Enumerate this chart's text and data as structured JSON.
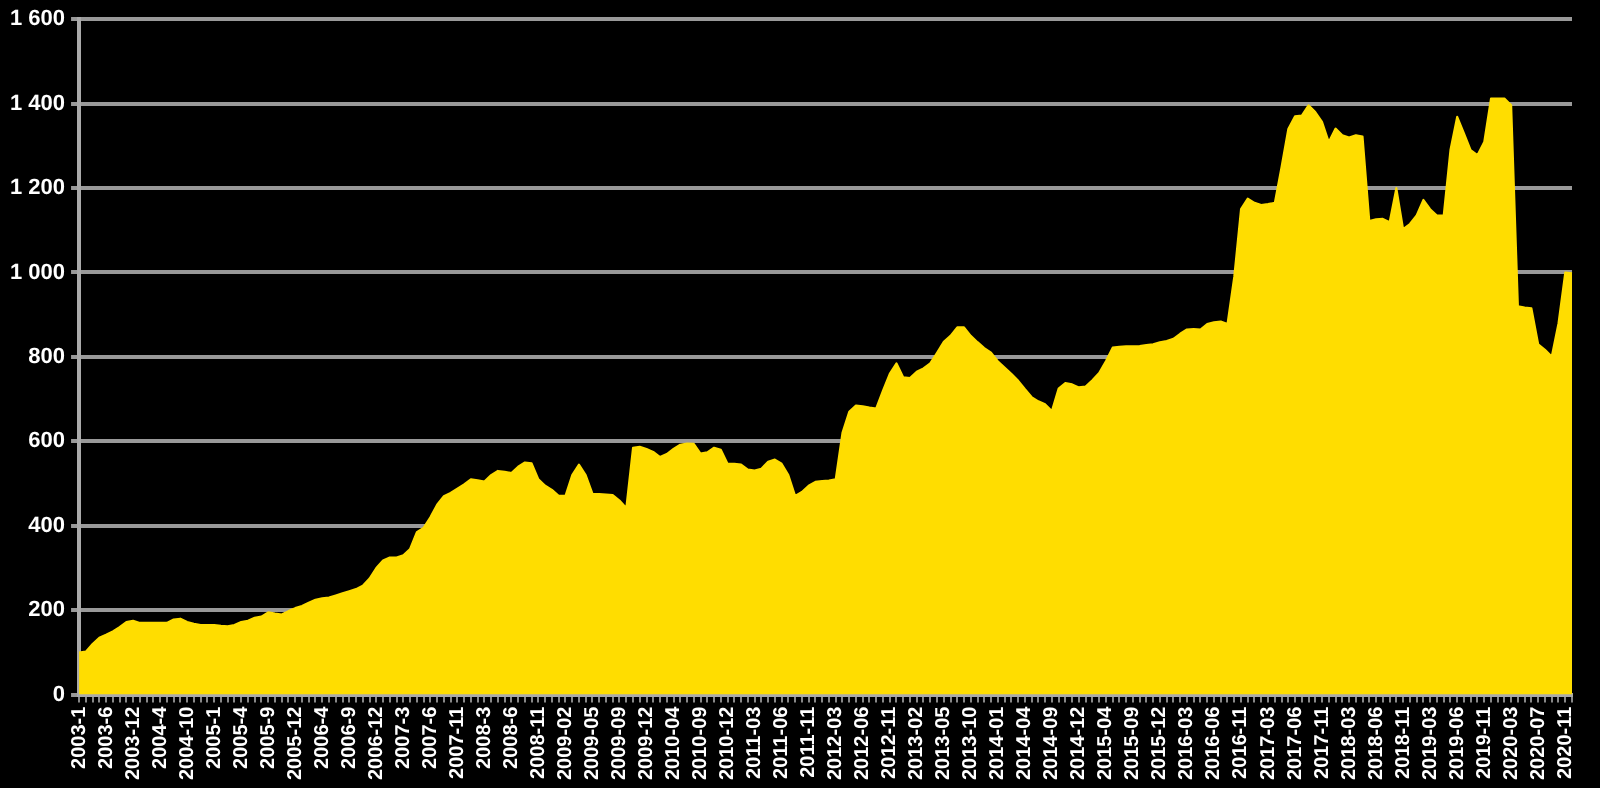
{
  "chart_data": {
    "type": "area",
    "color": "#ffdd00",
    "grid": "y",
    "ylim": [
      0,
      1600
    ],
    "yticks": [
      0,
      200,
      400,
      600,
      800,
      {
        "value": 1000,
        "label": "1 000"
      },
      {
        "value": 1200,
        "label": "1 200"
      },
      {
        "value": 1400,
        "label": "1 400"
      },
      {
        "value": 1600,
        "label": "1 600"
      }
    ],
    "categories": [
      "2003-1",
      null,
      null,
      null,
      "2003-6",
      null,
      null,
      null,
      "2003-12",
      null,
      null,
      null,
      "2004-4",
      null,
      null,
      null,
      "2004-10",
      null,
      null,
      null,
      "2005-1",
      null,
      null,
      null,
      "2005-4",
      null,
      null,
      null,
      "2005-9",
      null,
      null,
      null,
      "2005-12",
      null,
      null,
      null,
      "2006-4",
      null,
      null,
      null,
      "2006-9",
      null,
      null,
      null,
      "2006-12",
      null,
      null,
      null,
      "2007-3",
      null,
      null,
      null,
      "2007-6",
      null,
      null,
      null,
      "2007-11",
      null,
      null,
      null,
      "2008-3",
      null,
      null,
      null,
      "2008-6",
      null,
      null,
      null,
      "2008-11",
      null,
      null,
      null,
      "2009-02",
      null,
      null,
      null,
      "2009-05",
      null,
      null,
      null,
      "2009-09",
      null,
      null,
      null,
      "2009-12",
      null,
      null,
      null,
      "2010-04",
      null,
      null,
      null,
      "2010-09",
      null,
      null,
      null,
      "2010-12",
      null,
      null,
      null,
      "2011-03",
      null,
      null,
      null,
      "2011-06",
      null,
      null,
      null,
      "2011-11",
      null,
      null,
      null,
      "2012-03",
      null,
      null,
      null,
      "2012-06",
      null,
      null,
      null,
      "2012-11",
      null,
      null,
      null,
      "2013-02",
      null,
      null,
      null,
      "2013-05",
      null,
      null,
      null,
      "2013-10",
      null,
      null,
      null,
      "2014-01",
      null,
      null,
      null,
      "2014-04",
      null,
      null,
      null,
      "2014-09",
      null,
      null,
      null,
      "2014-12",
      null,
      null,
      null,
      "2015-04",
      null,
      null,
      null,
      "2015-09",
      null,
      null,
      null,
      "2015-12",
      null,
      null,
      null,
      "2016-03",
      null,
      null,
      null,
      "2016-06",
      null,
      null,
      null,
      "2016-11",
      null,
      null,
      null,
      "2017-03",
      null,
      null,
      null,
      "2017-06",
      null,
      null,
      null,
      "2017-11",
      null,
      null,
      null,
      "2018-03",
      null,
      null,
      null,
      "2018-06",
      null,
      null,
      null,
      "2018-11",
      null,
      null,
      null,
      "2019-03",
      null,
      null,
      null,
      "2019-06",
      null,
      null,
      null,
      "2019-11",
      null,
      null,
      null,
      "2020-03",
      null,
      null,
      null,
      "2020-07",
      null,
      null,
      null,
      "2020-11",
      null
    ],
    "values": [
      100,
      102,
      120,
      135,
      142,
      150,
      160,
      172,
      175,
      170,
      170,
      170,
      170,
      170,
      178,
      180,
      172,
      168,
      165,
      165,
      165,
      163,
      162,
      165,
      172,
      175,
      182,
      185,
      195,
      192,
      190,
      198,
      205,
      210,
      218,
      225,
      228,
      230,
      235,
      240,
      245,
      250,
      258,
      275,
      300,
      318,
      325,
      325,
      330,
      345,
      385,
      395,
      420,
      450,
      470,
      478,
      488,
      498,
      510,
      508,
      505,
      520,
      530,
      528,
      525,
      540,
      550,
      548,
      510,
      495,
      485,
      471,
      471,
      520,
      545,
      520,
      476,
      475,
      474,
      473,
      460,
      442,
      585,
      587,
      582,
      575,
      563,
      570,
      582,
      592,
      595,
      594,
      571,
      574,
      585,
      580,
      547,
      547,
      545,
      533,
      531,
      535,
      552,
      557,
      547,
      520,
      471,
      480,
      495,
      504,
      506,
      507,
      510,
      620,
      670,
      685,
      683,
      680,
      678,
      720,
      760,
      785,
      752,
      750,
      765,
      773,
      785,
      810,
      836,
      850,
      870,
      870,
      850,
      835,
      821,
      810,
      790,
      775,
      760,
      744,
      724,
      705,
      695,
      688,
      672,
      725,
      738,
      735,
      728,
      730,
      745,
      762,
      790,
      822,
      824,
      825,
      825,
      826,
      828,
      830,
      835,
      838,
      843,
      855,
      865,
      866,
      865,
      878,
      882,
      884,
      878,
      990,
      1150,
      1175,
      1165,
      1160,
      1162,
      1165,
      1250,
      1340,
      1370,
      1372,
      1396,
      1380,
      1357,
      1309,
      1341,
      1325,
      1320,
      1325,
      1322,
      1122,
      1126,
      1127,
      1119,
      1200,
      1103,
      1115,
      1135,
      1172,
      1150,
      1135,
      1135,
      1290,
      1369,
      1330,
      1290,
      1278,
      1309,
      1412,
      1412,
      1412,
      1396,
      920,
      917,
      915,
      830,
      817,
      801,
      880,
      1000,
      998
    ]
  }
}
